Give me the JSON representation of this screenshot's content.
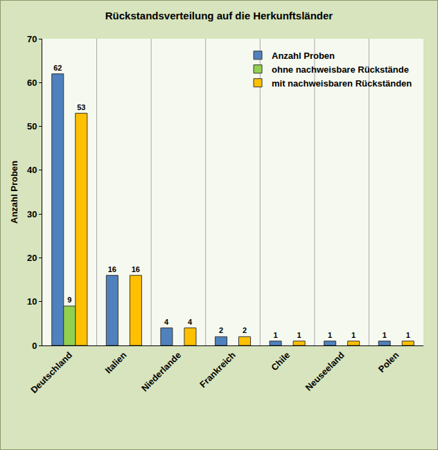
{
  "chart_data": {
    "type": "bar",
    "title": "Rückstandsverteilung auf die Herkunftsländer",
    "y_label": "Anzahl Proben",
    "categories": [
      "Deutschland",
      "Italien",
      "Niederlande",
      "Frankreich",
      "Chile",
      "Neuseeland",
      "Polen"
    ],
    "series": [
      {
        "name": "Anzahl Proben",
        "color": "#4f81bd",
        "values": [
          62,
          16,
          4,
          2,
          1,
          1,
          1
        ]
      },
      {
        "name": "ohne nachweisbare Rückstände",
        "color": "#92d050",
        "values": [
          9,
          null,
          null,
          null,
          null,
          null,
          null
        ]
      },
      {
        "name": "mit nachweisbaren Rückständen",
        "color": "#ffc000",
        "values": [
          53,
          16,
          4,
          2,
          1,
          1,
          1
        ]
      }
    ],
    "ylim": [
      0,
      70
    ],
    "yticks": [
      0,
      10,
      20,
      30,
      40,
      50,
      60,
      70
    ],
    "grid": false,
    "legend": "upper right",
    "data_labels": true
  }
}
